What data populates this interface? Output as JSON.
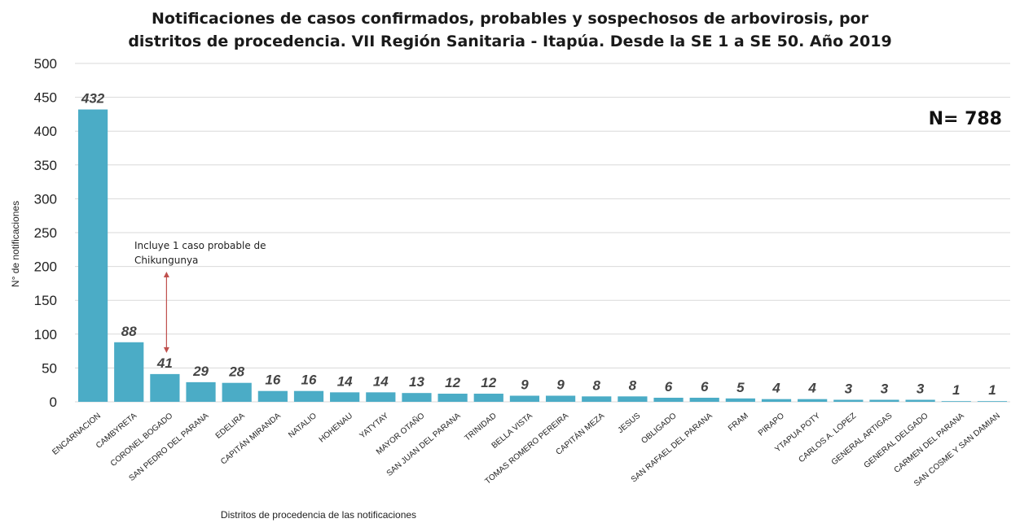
{
  "chart_data": {
    "type": "bar",
    "title_line1": "Notificaciones de casos confirmados, probables y sospechosos de arbovirosis, por",
    "title_line2": "distritos de procedencia.  VII Región Sanitaria - Itapúa. Desde la SE 1 a SE 50. Año 2019",
    "xlabel": "Distritos de procedencia de las notificaciones",
    "ylabel": "N° de notificaciones",
    "ylim": [
      0,
      500
    ],
    "yticks": [
      0,
      50,
      100,
      150,
      200,
      250,
      300,
      350,
      400,
      450,
      500
    ],
    "categories": [
      "ENCARNACION",
      "CAMBYRETA",
      "CORONEL BOGADO",
      "SAN PEDRO DEL PARANA",
      "EDELIRA",
      "CAPITÁN MIRANDA",
      "NATALIO",
      "HOHENAU",
      "YATYTAY",
      "MAYOR OTAÑO",
      "SAN JUAN DEL PARANA",
      "TRINIDAD",
      "BELLA VISTA",
      "TOMAS ROMERO PEREIRA",
      "CAPITÁN MEZA",
      "JESUS",
      "OBLIGADO",
      "SAN RAFAEL DEL PARANA",
      "FRAM",
      "PIRAPO",
      "YTAPUA POTY",
      "CARLOS A. LOPEZ",
      "GENERAL ARTIGAS",
      "GENERAL DELGADO",
      "CARMEN DEL PARANA",
      "SAN COSME Y SAN DAMIAN"
    ],
    "values": [
      432,
      88,
      41,
      29,
      28,
      16,
      16,
      14,
      14,
      13,
      12,
      12,
      9,
      9,
      8,
      8,
      6,
      6,
      5,
      4,
      4,
      3,
      3,
      3,
      1,
      1
    ],
    "bar_color": "#4bacc6",
    "grid": true,
    "total_label": "N= 788",
    "annotation": {
      "line1": "Incluye 1 caso probable de",
      "line2": "Chikungunya",
      "category": "CORONEL BOGADO",
      "arrow_color": "#c0504d"
    }
  }
}
